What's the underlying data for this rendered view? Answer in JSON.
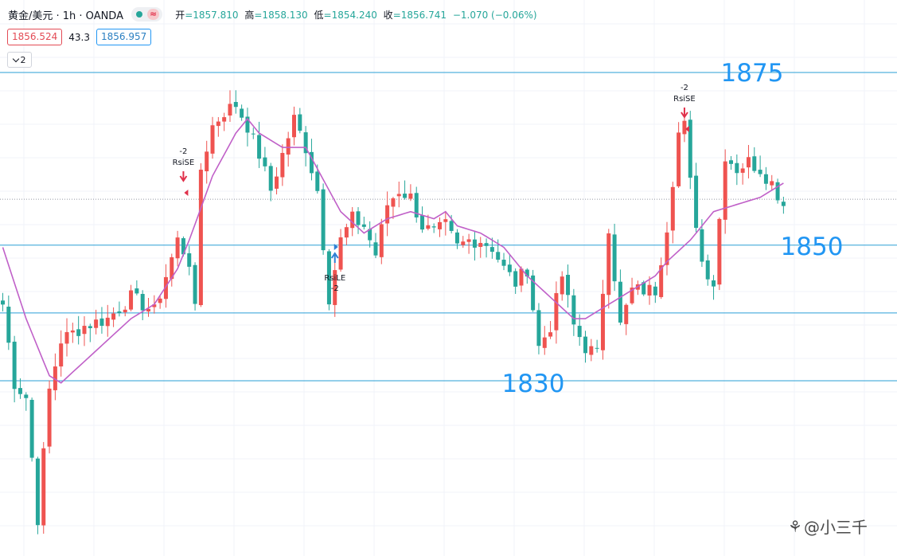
{
  "header": {
    "symbol": "黄金/美元 · 1h · OANDA",
    "status_icon": "≈",
    "ohlc": {
      "open_label": "开",
      "open": "=1857.810",
      "high_label": "高",
      "high": "=1858.130",
      "low_label": "低",
      "low": "=1854.240",
      "close_label": "收",
      "close": "=1856.741",
      "change": "−1.070 (−0.06%)"
    }
  },
  "quote": {
    "bid": "1856.524",
    "spread": "43.3",
    "ask": "1856.957"
  },
  "indicator_toggle": {
    "count": "2"
  },
  "colors": {
    "up": "#ef5350",
    "down": "#26a69a",
    "ma": "#c060c8",
    "level_line": "#2a9fd6",
    "level_text": "#2196f3",
    "arrow_sell": "#e0304a",
    "arrow_buy": "#2f7fd3"
  },
  "chart_data": {
    "type": "candlestick",
    "instrument": "XAU/USD",
    "timeframe": "1h",
    "y_range": [
      1820,
      1876
    ],
    "current_price": 1856.74,
    "levels": [
      {
        "label": "1875",
        "value": 1874.5
      },
      {
        "label": "1850",
        "value": 1850.3
      },
      {
        "label": "1830",
        "value": 1831.3
      }
    ],
    "extra_levels": [
      1840.8
    ],
    "signals": [
      {
        "type": "sell",
        "name": "RsiSE",
        "qty": "-2",
        "bar": 31
      },
      {
        "type": "buy",
        "name": "RsiLE",
        "qty": "-2",
        "bar": 57
      },
      {
        "type": "sell",
        "name": "RsiSE",
        "qty": "-2",
        "bar": 117
      }
    ],
    "close_anchors": [
      [
        0,
        1842
      ],
      [
        2,
        1831
      ],
      [
        4,
        1829
      ],
      [
        6,
        1812
      ],
      [
        8,
        1830
      ],
      [
        10,
        1837
      ],
      [
        14,
        1839
      ],
      [
        18,
        1840
      ],
      [
        22,
        1843
      ],
      [
        26,
        1841
      ],
      [
        30,
        1851
      ],
      [
        32,
        1848
      ],
      [
        33,
        1841
      ],
      [
        34,
        1861
      ],
      [
        36,
        1867
      ],
      [
        38,
        1869
      ],
      [
        40,
        1870
      ],
      [
        42,
        1867
      ],
      [
        44,
        1863
      ],
      [
        46,
        1858
      ],
      [
        48,
        1863
      ],
      [
        50,
        1868
      ],
      [
        52,
        1864
      ],
      [
        54,
        1858
      ],
      [
        56,
        1843
      ],
      [
        58,
        1851
      ],
      [
        60,
        1854
      ],
      [
        62,
        1853
      ],
      [
        64,
        1849
      ],
      [
        66,
        1856
      ],
      [
        68,
        1858
      ],
      [
        70,
        1857
      ],
      [
        72,
        1853
      ],
      [
        74,
        1852
      ],
      [
        76,
        1853
      ],
      [
        78,
        1850
      ],
      [
        80,
        1851
      ],
      [
        82,
        1851
      ],
      [
        84,
        1850
      ],
      [
        86,
        1847
      ],
      [
        88,
        1845
      ],
      [
        90,
        1847
      ],
      [
        92,
        1836
      ],
      [
        94,
        1839
      ],
      [
        96,
        1846
      ],
      [
        98,
        1839
      ],
      [
        100,
        1836
      ],
      [
        102,
        1835
      ],
      [
        104,
        1853
      ],
      [
        106,
        1839
      ],
      [
        108,
        1844
      ],
      [
        110,
        1844
      ],
      [
        112,
        1844
      ],
      [
        114,
        1853
      ],
      [
        116,
        1866
      ],
      [
        117,
        1867
      ],
      [
        118,
        1859
      ],
      [
        120,
        1848
      ],
      [
        122,
        1845
      ],
      [
        124,
        1863
      ],
      [
        126,
        1861
      ],
      [
        128,
        1862
      ],
      [
        130,
        1861
      ],
      [
        132,
        1859
      ],
      [
        134,
        1856
      ]
    ],
    "ma_anchors": [
      [
        0,
        1850
      ],
      [
        4,
        1840
      ],
      [
        8,
        1832
      ],
      [
        10,
        1831
      ],
      [
        14,
        1834
      ],
      [
        18,
        1837
      ],
      [
        22,
        1840
      ],
      [
        26,
        1842
      ],
      [
        30,
        1847
      ],
      [
        32,
        1851
      ],
      [
        36,
        1860
      ],
      [
        40,
        1866
      ],
      [
        42,
        1868
      ],
      [
        44,
        1866
      ],
      [
        48,
        1864
      ],
      [
        52,
        1864
      ],
      [
        54,
        1861
      ],
      [
        58,
        1855
      ],
      [
        62,
        1852
      ],
      [
        66,
        1854
      ],
      [
        70,
        1855
      ],
      [
        74,
        1854
      ],
      [
        76,
        1855
      ],
      [
        78,
        1853
      ],
      [
        82,
        1852
      ],
      [
        86,
        1850
      ],
      [
        90,
        1846
      ],
      [
        94,
        1843
      ],
      [
        98,
        1840
      ],
      [
        100,
        1840
      ],
      [
        104,
        1842
      ],
      [
        108,
        1844
      ],
      [
        112,
        1846
      ],
      [
        114,
        1848
      ],
      [
        118,
        1851
      ],
      [
        122,
        1855
      ],
      [
        126,
        1856
      ],
      [
        130,
        1857
      ],
      [
        134,
        1859
      ]
    ]
  },
  "watermark": {
    "icon": "⚘",
    "text": "@小三千"
  }
}
